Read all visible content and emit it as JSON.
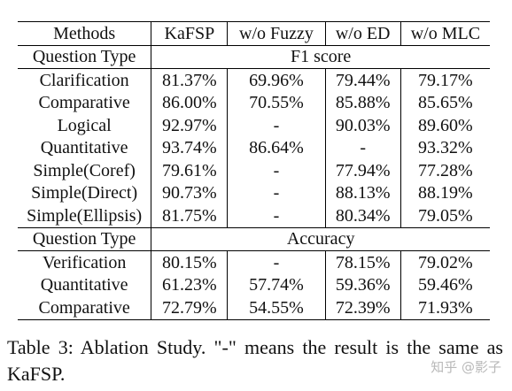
{
  "table": {
    "header": [
      "Methods",
      "KaFSP",
      "w/o Fuzzy",
      "w/o ED",
      "w/o MLC"
    ],
    "sections": [
      {
        "label": "Question Type",
        "metric": "F1 score",
        "rows": [
          [
            "Clarification",
            "81.37%",
            "69.96%",
            "79.44%",
            "79.17%"
          ],
          [
            "Comparative",
            "86.00%",
            "70.55%",
            "85.88%",
            "85.65%"
          ],
          [
            "Logical",
            "92.97%",
            "-",
            "90.03%",
            "89.60%"
          ],
          [
            "Quantitative",
            "93.74%",
            "86.64%",
            "-",
            "93.32%"
          ],
          [
            "Simple(Coref)",
            "79.61%",
            "-",
            "77.94%",
            "77.28%"
          ],
          [
            "Simple(Direct)",
            "90.73%",
            "-",
            "88.13%",
            "88.19%"
          ],
          [
            "Simple(Ellipsis)",
            "81.75%",
            "-",
            "80.34%",
            "79.05%"
          ]
        ]
      },
      {
        "label": "Question Type",
        "metric": "Accuracy",
        "rows": [
          [
            "Verification",
            "80.15%",
            "-",
            "78.15%",
            "79.02%"
          ],
          [
            "Quantitative",
            "61.23%",
            "57.74%",
            "59.36%",
            "59.46%"
          ],
          [
            "Comparative",
            "72.79%",
            "54.55%",
            "72.39%",
            "71.93%"
          ]
        ]
      }
    ]
  },
  "caption": "Table 3:  Ablation Study.  \"-\" means the result is the same as KaFSP.",
  "watermark": "知乎 @影子"
}
